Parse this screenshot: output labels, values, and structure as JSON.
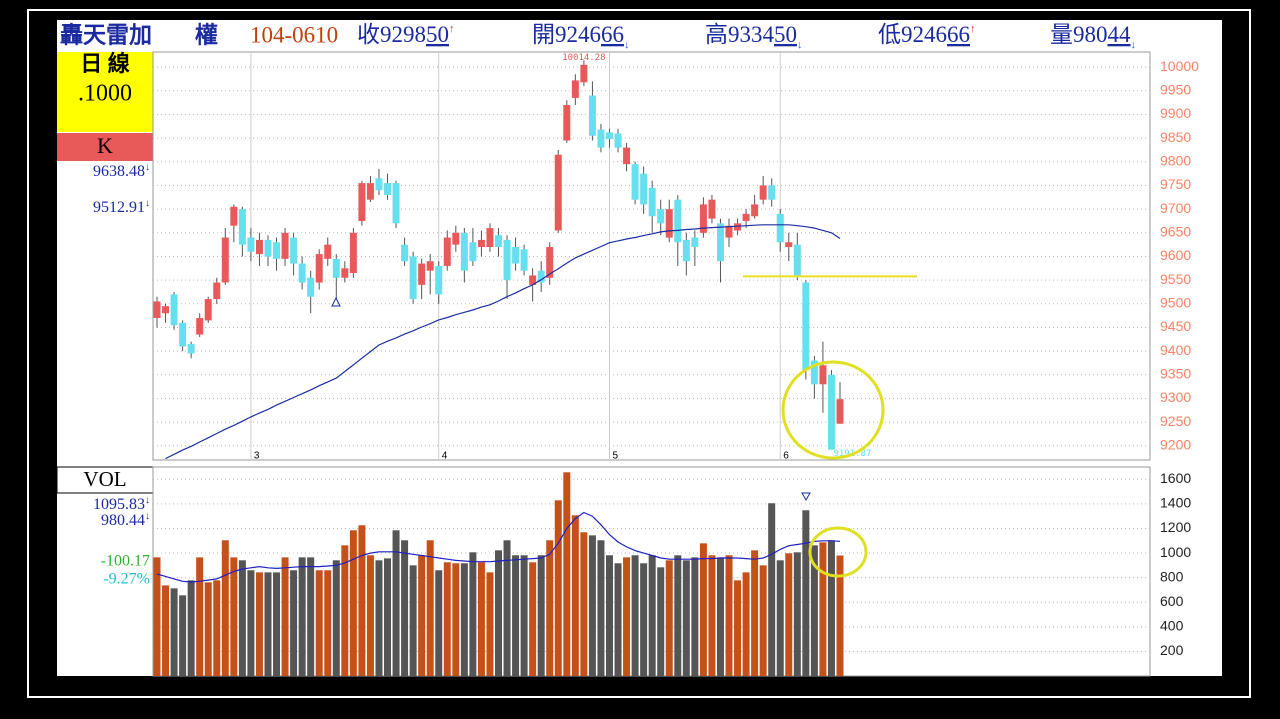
{
  "header": {
    "name": "轟天雷加",
    "name2": "權",
    "date": "104-0610",
    "items": [
      {
        "int": "收9298",
        "dec": "50",
        "arrow": "↑"
      },
      {
        "int": "開9246",
        "dec": "66",
        "arrow": "↓"
      },
      {
        "int": "高9334",
        "dec": "50",
        "arrow": "↓"
      },
      {
        "int": "低9246",
        "dec": "66",
        "arrow": "↑"
      },
      {
        "int": "量980",
        "dec": "44",
        "arrow": "↓"
      }
    ]
  },
  "side": {
    "period": "日 線",
    "scale": ".1000",
    "k": "K",
    "ma_values": [
      {
        "text": "9638.48",
        "arrow": "↓"
      },
      {
        "text": "9512.91",
        "arrow": "↓"
      }
    ],
    "vol": "VOL",
    "vol_values": [
      {
        "text": "1095.83",
        "arrow": "↓"
      },
      {
        "text": "980.44",
        "arrow": "↓"
      }
    ],
    "change": "-100.17",
    "change_pct": "-9.27%"
  },
  "chart_data": [
    {
      "type": "candlestick",
      "categories": [
        null,
        null,
        null,
        null,
        null,
        null,
        null,
        null,
        null,
        null,
        null,
        "3",
        null,
        null,
        null,
        null,
        null,
        null,
        null,
        null,
        null,
        null,
        null,
        null,
        null,
        null,
        null,
        null,
        null,
        null,
        null,
        null,
        null,
        "4",
        null,
        null,
        null,
        null,
        null,
        null,
        null,
        null,
        null,
        null,
        null,
        null,
        null,
        null,
        null,
        null,
        null,
        null,
        null,
        "5",
        null,
        null,
        null,
        null,
        null,
        null,
        null,
        null,
        null,
        null,
        null,
        null,
        null,
        null,
        null,
        null,
        null,
        null,
        null,
        "6",
        null,
        null,
        null,
        null,
        null,
        null,
        null
      ],
      "open": [
        9470,
        9480,
        9520,
        9460,
        9415,
        9435,
        9465,
        9510,
        9545,
        9665,
        9700,
        9640,
        9605,
        9635,
        9630,
        9595,
        9640,
        9585,
        9555,
        9545,
        9595,
        9595,
        9555,
        9565,
        9675,
        9720,
        9765,
        9755,
        9755,
        9625,
        9600,
        9540,
        9570,
        9580,
        9580,
        9625,
        9650,
        9630,
        9620,
        9620,
        9645,
        9635,
        9620,
        9615,
        9540,
        9570,
        9555,
        9655,
        9845,
        9935,
        9968,
        9940,
        9868,
        9862,
        9860,
        9795,
        9795,
        9775,
        9745,
        9700,
        9640,
        9720,
        9635,
        9640,
        9650,
        9680,
        9670,
        9640,
        9655,
        9675,
        9685,
        9720,
        9750,
        9690,
        9620,
        9625,
        9545,
        9380,
        9330,
        9350,
        9246.66
      ],
      "high": [
        9515,
        9500,
        9525,
        9465,
        9420,
        9480,
        9515,
        9555,
        9660,
        9710,
        9705,
        9660,
        9650,
        9645,
        9640,
        9660,
        9650,
        9600,
        9570,
        9615,
        9640,
        9605,
        9590,
        9660,
        9760,
        9770,
        9785,
        9775,
        9760,
        9640,
        9610,
        9595,
        9605,
        9590,
        9655,
        9665,
        9660,
        9660,
        9655,
        9670,
        9660,
        9645,
        9640,
        9625,
        9575,
        9590,
        9630,
        9825,
        9930,
        9985,
        10014.28,
        9970,
        9880,
        9870,
        9870,
        9840,
        9800,
        9790,
        9760,
        9720,
        9720,
        9730,
        9650,
        9655,
        9725,
        9730,
        9680,
        9680,
        9680,
        9700,
        9730,
        9770,
        9765,
        9700,
        9650,
        9650,
        9550,
        9390,
        9420,
        9360,
        9334.5
      ],
      "low": [
        9450,
        9460,
        9445,
        9400,
        9385,
        9430,
        9460,
        9500,
        9540,
        9630,
        9600,
        9590,
        9580,
        9580,
        9570,
        9580,
        9560,
        9530,
        9480,
        9530,
        9580,
        9510,
        9545,
        9555,
        9665,
        9715,
        9730,
        9720,
        9660,
        9580,
        9500,
        9510,
        9520,
        9500,
        9570,
        9610,
        9545,
        9580,
        9600,
        9610,
        9600,
        9510,
        9570,
        9560,
        9505,
        9525,
        9540,
        9650,
        9840,
        9920,
        9960,
        9845,
        9820,
        9830,
        9820,
        9780,
        9710,
        9690,
        9650,
        9645,
        9630,
        9580,
        9560,
        9580,
        9640,
        9670,
        9545,
        9620,
        9645,
        9660,
        9680,
        9710,
        9705,
        9610,
        9590,
        9550,
        9340,
        9300,
        9270,
        9191.87,
        9246.66
      ],
      "close": [
        9505,
        9495,
        9455,
        9410,
        9395,
        9470,
        9510,
        9545,
        9640,
        9705,
        9625,
        9610,
        9635,
        9600,
        9595,
        9650,
        9585,
        9545,
        9515,
        9605,
        9625,
        9555,
        9575,
        9650,
        9755,
        9755,
        9740,
        9730,
        9670,
        9590,
        9510,
        9585,
        9590,
        9520,
        9640,
        9650,
        9570,
        9590,
        9635,
        9660,
        9620,
        9550,
        9585,
        9570,
        9560,
        9545,
        9620,
        9815,
        9920,
        9972,
        10005,
        9855,
        9830,
        9848,
        9830,
        9830,
        9720,
        9710,
        9685,
        9670,
        9700,
        9630,
        9590,
        9620,
        9710,
        9720,
        9590,
        9665,
        9670,
        9690,
        9710,
        9750,
        9720,
        9630,
        9630,
        9560,
        9360,
        9330,
        9370,
        9191.87,
        9298.5
      ],
      "up_color": "#e85a5a",
      "down_color": "#66e0ee",
      "ma": {
        "color": "#1c2fa0",
        "values": [
          null,
          9173,
          9182,
          9191,
          9199,
          9208,
          9217,
          9226,
          9235,
          9243,
          9252,
          9261,
          9269,
          9277,
          9286,
          9294,
          9302,
          9310,
          9318,
          9327,
          9335,
          9343,
          9357,
          9371,
          9385,
          9399,
          9413,
          9421,
          9428,
          9436,
          9443,
          9451,
          9458,
          9466,
          9471,
          9477,
          9482,
          9487,
          9493,
          9498,
          9506,
          9515,
          9523,
          9532,
          9540,
          9551,
          9563,
          9574,
          9586,
          9597,
          9605,
          9613,
          9621,
          9629,
          9633,
          9637,
          9640,
          9644,
          9648,
          9652,
          9654,
          9655,
          9657,
          9658,
          9660,
          9661,
          9662,
          9663,
          9664,
          9665,
          9666,
          9667,
          9667,
          9667,
          9667,
          9665,
          9663,
          9660,
          9655,
          9650,
          9638
        ]
      },
      "hline": {
        "value": 9558,
        "color": "#e8e020"
      },
      "ylim": [
        9170,
        10032
      ],
      "yticks": [
        9200,
        9250,
        9300,
        9350,
        9400,
        9450,
        9500,
        9550,
        9600,
        9650,
        9700,
        9750,
        9800,
        9850,
        9900,
        9950,
        10000
      ],
      "tick_color": "#f4846a",
      "grid": true
    },
    {
      "type": "bar",
      "values": [
        965,
        737,
        713,
        656,
        778,
        965,
        762,
        778,
        1104,
        965,
        941,
        860,
        843,
        843,
        843,
        965,
        860,
        965,
        965,
        860,
        860,
        941,
        1063,
        1185,
        1226,
        982,
        941,
        957,
        1185,
        1104,
        900,
        982,
        1104,
        860,
        925,
        917,
        917,
        1006,
        925,
        843,
        1022,
        1104,
        982,
        982,
        925,
        982,
        1104,
        1429,
        1657,
        1307,
        1169,
        1144,
        1104,
        982,
        917,
        965,
        982,
        917,
        982,
        884,
        941,
        982,
        941,
        965,
        1079,
        982,
        965,
        982,
        778,
        843,
        1022,
        900,
        1405,
        941,
        998,
        1006,
        1348,
        1063,
        1087,
        1104,
        980
      ],
      "up_color": "#c4501a",
      "down_color": "#555555",
      "ma": {
        "color": "#2020c0",
        "values": [
          830,
          810,
          790,
          770,
          765,
          770,
          780,
          790,
          820,
          850,
          870,
          880,
          890,
          880,
          875,
          880,
          885,
          890,
          890,
          890,
          895,
          900,
          920,
          950,
          980,
          1000,
          1010,
          1010,
          1010,
          1000,
          990,
          980,
          970,
          960,
          950,
          940,
          935,
          930,
          930,
          930,
          935,
          940,
          945,
          950,
          955,
          960,
          990,
          1080,
          1200,
          1280,
          1330,
          1300,
          1230,
          1150,
          1090,
          1050,
          1020,
          1000,
          980,
          960,
          950,
          950,
          950,
          950,
          955,
          955,
          960,
          960,
          960,
          955,
          950,
          960,
          990,
          1030,
          1060,
          1070,
          1080,
          1095,
          1100,
          1100,
          1096
        ]
      },
      "ylim": [
        0,
        1700
      ],
      "yticks": [
        200,
        400,
        600,
        800,
        1000,
        1200,
        1400,
        1600
      ],
      "tick_color": "#222222",
      "grid": true
    }
  ]
}
